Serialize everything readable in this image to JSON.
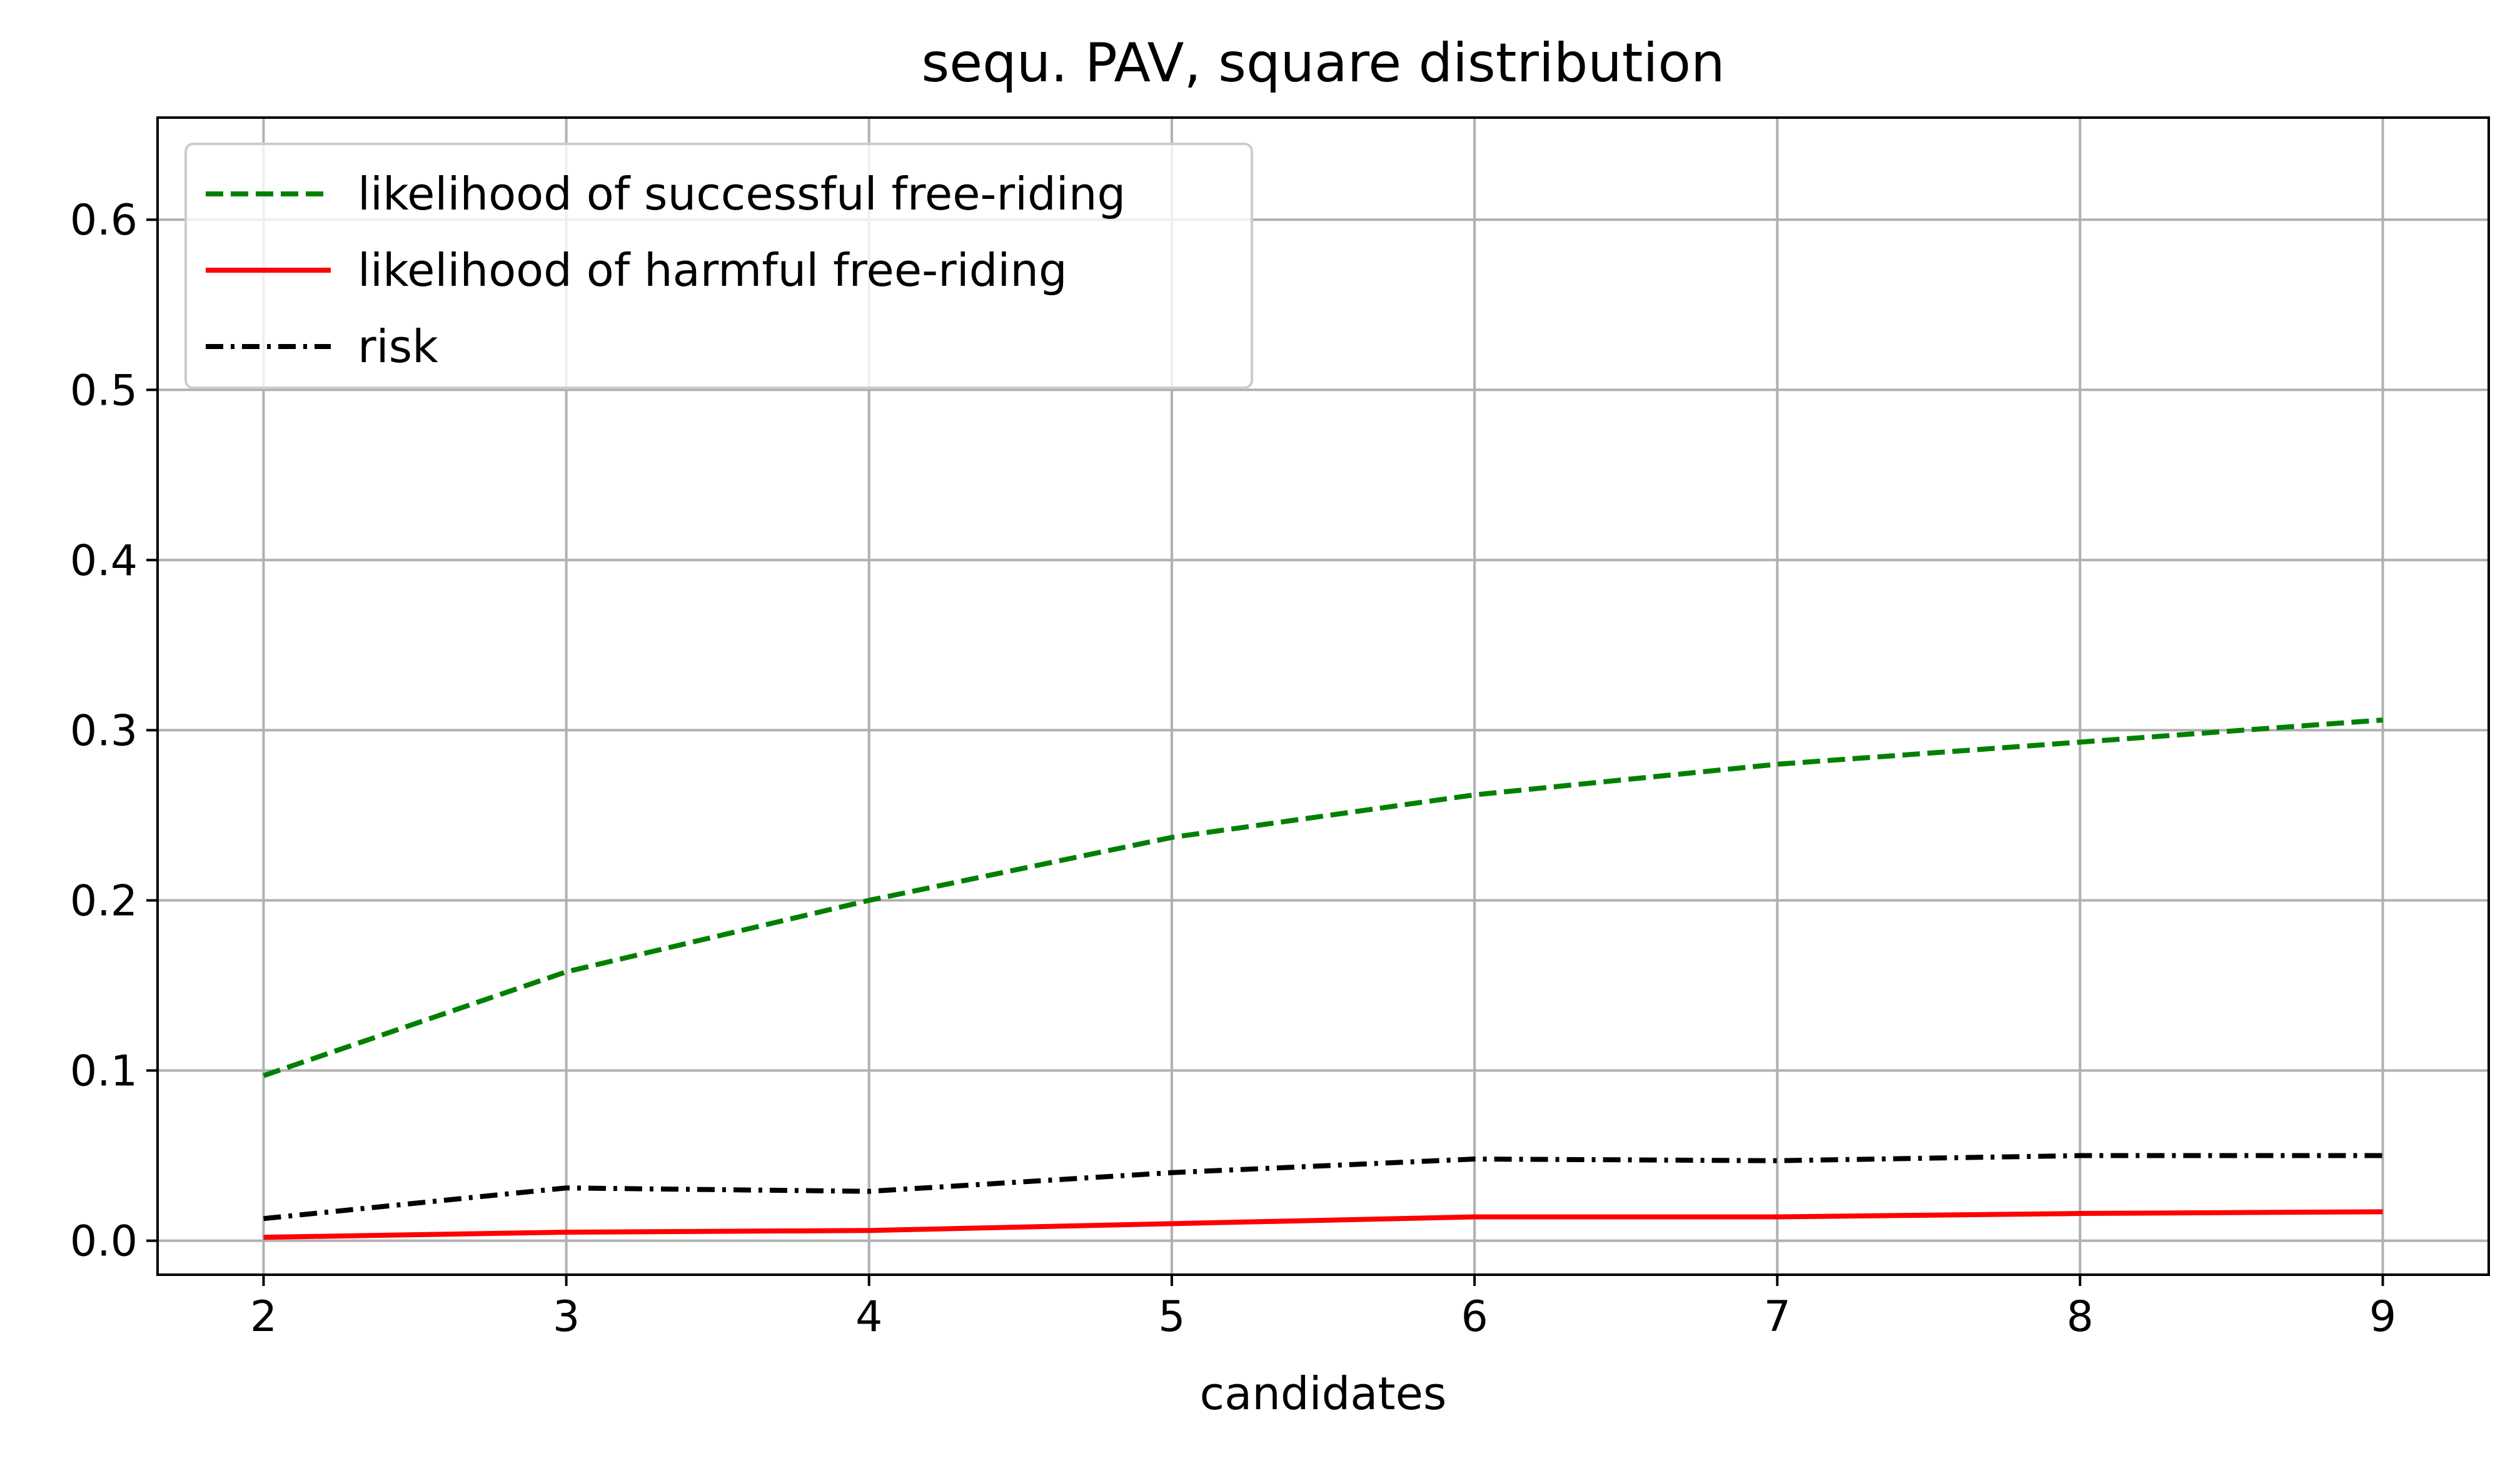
{
  "chart_data": {
    "type": "line",
    "title": "sequ. PAV, square distribution",
    "xlabel": "candidates",
    "ylabel": "",
    "x": [
      2,
      3,
      4,
      5,
      6,
      7,
      8,
      9
    ],
    "xlim": [
      1.65,
      9.35
    ],
    "ylim": [
      -0.02,
      0.66
    ],
    "xticks": [
      "2",
      "3",
      "4",
      "5",
      "6",
      "7",
      "8",
      "9"
    ],
    "yticks": [
      "0.0",
      "0.1",
      "0.2",
      "0.3",
      "0.4",
      "0.5",
      "0.6"
    ],
    "grid": true,
    "legend_position": "top-left",
    "series": [
      {
        "name": "likelihood of successful free-riding",
        "values": [
          0.097,
          0.158,
          0.2,
          0.237,
          0.262,
          0.28,
          0.293,
          0.306
        ],
        "color": "#008000",
        "style": "dashed"
      },
      {
        "name": "likelihood of harmful free-riding",
        "values": [
          0.002,
          0.005,
          0.006,
          0.01,
          0.014,
          0.014,
          0.016,
          0.017
        ],
        "color": "#ff0000",
        "style": "solid"
      },
      {
        "name": "risk",
        "values": [
          0.013,
          0.031,
          0.029,
          0.04,
          0.048,
          0.047,
          0.05,
          0.05
        ],
        "color": "#000000",
        "style": "dashdot"
      }
    ]
  }
}
